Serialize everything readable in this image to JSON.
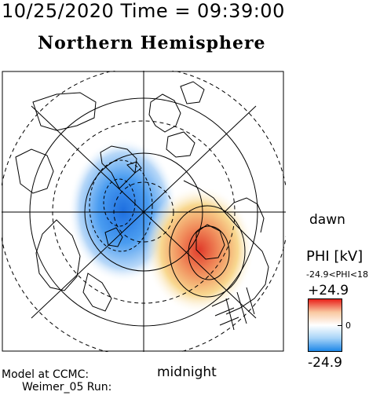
{
  "header": {
    "datetime": "10/25/2020 Time = 09:39:00",
    "hemisphere": "Northern Hemisphere"
  },
  "map": {
    "dawn_label": "dawn",
    "midnight_label": "midnight"
  },
  "colorbar": {
    "title": "PHI [kV]",
    "range_text": "-24.9<PHI<18",
    "max_label": "+24.9",
    "zero_label": "0",
    "min_label": "-24.9",
    "colors": [
      "#e8201a",
      "#f9c8a0",
      "#ffffff",
      "#a8d4f8",
      "#1e88e8"
    ]
  },
  "footer": {
    "model_at": "Model at CCMC:",
    "model_run": "Weimer_05 Run:"
  }
}
